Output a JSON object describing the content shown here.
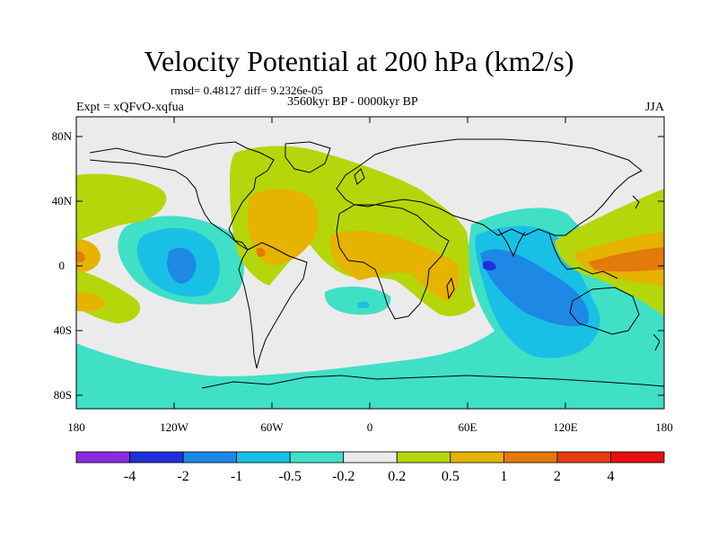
{
  "header": {
    "title": "Velocity Potential at 200 hPa (km2/s)",
    "stats": "rmsd= 0.48127 diff= 9.2326e-05",
    "experiment": "Expt = xQFvO-xqfua",
    "period": "3560kyr BP - 0000kyr BP",
    "season": "JJA"
  },
  "axes": {
    "lat_labels": [
      "80N",
      "40N",
      "0",
      "40S",
      "80S"
    ],
    "lon_labels": [
      "180",
      "120W",
      "60W",
      "0",
      "60E",
      "120E",
      "180"
    ]
  },
  "colorbar": {
    "labels": [
      "-4",
      "-2",
      "-1",
      "-0.5",
      "-0.2",
      "0.2",
      "0.5",
      "1",
      "2",
      "4"
    ],
    "colors": [
      "#8a2be2",
      "#2030d8",
      "#1e88e5",
      "#19c0e6",
      "#3fe0c6",
      "#ebebeb",
      "#b5d60a",
      "#e5b300",
      "#e37a0a",
      "#e63c10",
      "#e61010"
    ]
  },
  "map_colors": {
    "ocean_background": "#ebebeb",
    "neg_02": "#3fe0c6",
    "neg_05": "#19c0e6",
    "neg_1": "#1e88e5",
    "neg_2": "#2030d8",
    "pos_02": "#b5d60a",
    "pos_05": "#e5b300",
    "pos_1": "#e37a0a",
    "coastline": "#000000"
  }
}
